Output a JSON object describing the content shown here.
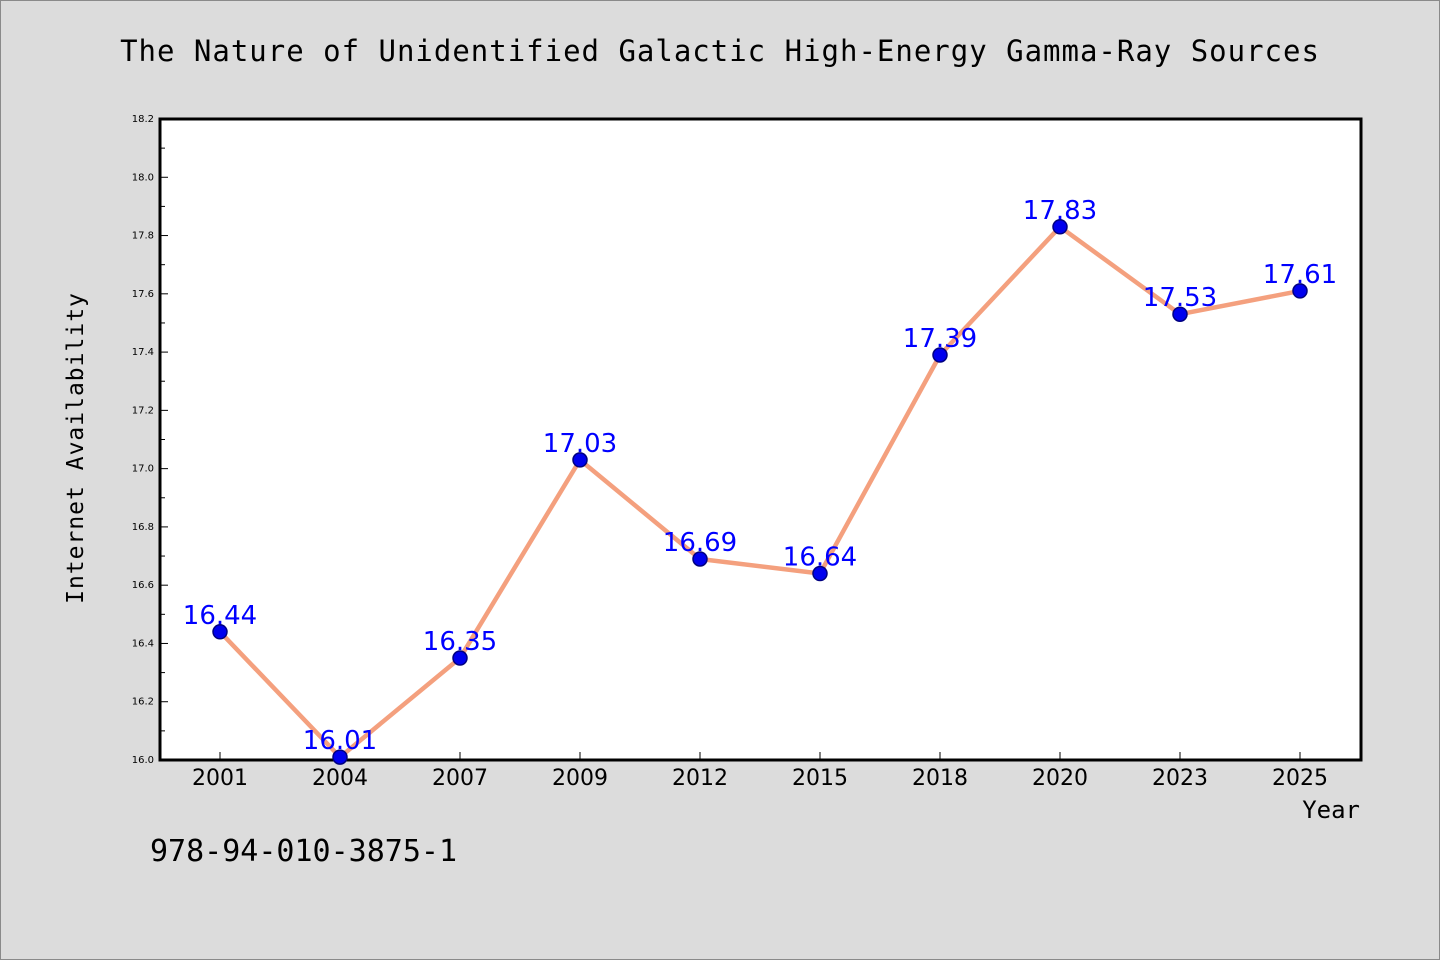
{
  "chart_data": {
    "type": "line",
    "title": "The Nature of Unidentified Galactic High-Energy Gamma-Ray Sources",
    "xlabel": "Year",
    "ylabel": "Internet Availability",
    "categories": [
      "2001",
      "2004",
      "2007",
      "2009",
      "2012",
      "2015",
      "2018",
      "2020",
      "2023",
      "2025"
    ],
    "series": [
      {
        "values": [
          16.44,
          16.01,
          16.35,
          17.03,
          16.69,
          16.64,
          17.39,
          17.83,
          17.53,
          17.61
        ]
      }
    ],
    "data_labels": [
      "16.44",
      "16.01",
      "16.35",
      "17.03",
      "16.69",
      "16.64",
      "17.39",
      "17.83",
      "17.53",
      "17.61"
    ],
    "ylim": [
      16.0,
      18.2
    ],
    "yticks": [
      "16.0",
      "16.2",
      "16.4",
      "16.6",
      "16.8",
      "17.0",
      "17.2",
      "17.4",
      "17.6",
      "17.8",
      "18.0",
      "18.2"
    ],
    "grid": false,
    "colors": {
      "line": "#f4a07e",
      "marker": "#0000ee",
      "marker_edge": "#000080",
      "label": "#0000ff",
      "plot_bg": "#ffffff",
      "page_bg": "#dcdcdc"
    }
  },
  "footer_text": "978-94-010-3875-1"
}
